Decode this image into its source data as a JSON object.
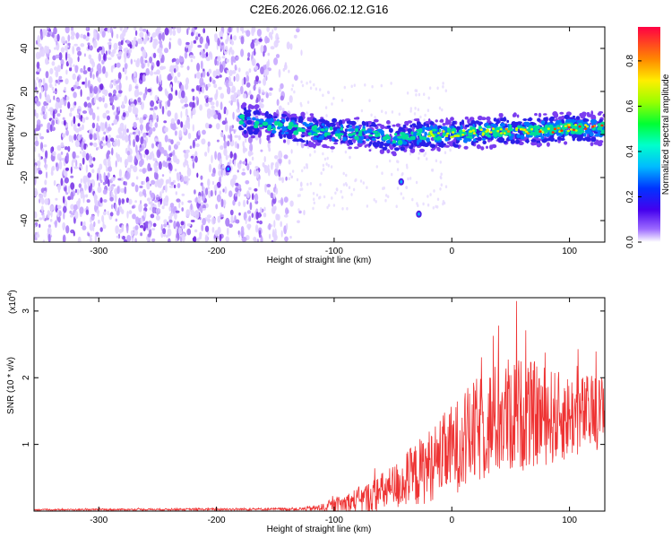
{
  "title": "C2E6.2026.066.02.12.G16",
  "chart_data": [
    {
      "type": "heatmap",
      "xlabel": "Height of straight line (km)",
      "ylabel": "Frequency (Hz)",
      "xlim": [
        -355,
        130
      ],
      "ylim": [
        -50,
        50
      ],
      "x_ticks": [
        -300,
        -200,
        -100,
        0,
        100
      ],
      "x_tick_labels": [
        "-300",
        "-200",
        "-100",
        "0",
        "100"
      ],
      "y_ticks": [
        -40,
        -20,
        0,
        20,
        40
      ],
      "y_tick_labels": [
        "-40",
        "-20",
        "0",
        "20",
        "40"
      ],
      "noise_region_x": [
        -355,
        -125
      ],
      "signal_line": {
        "x": [
          -180,
          -150,
          -125,
          -100,
          -75,
          -50,
          -25,
          0,
          25,
          50,
          75,
          100,
          130
        ],
        "frequency": [
          7,
          4,
          2,
          1,
          0,
          -2,
          0,
          0,
          1,
          2,
          2,
          3,
          3
        ]
      },
      "isolated_points": [
        {
          "x": -190,
          "frequency": -16
        },
        {
          "x": -43,
          "frequency": -22
        },
        {
          "x": -28,
          "frequency": -37
        }
      ],
      "colorbar": {
        "label": "Normalized spectral amplitude",
        "range": [
          0.0,
          0.95
        ],
        "ticks": [
          0.0,
          0.2,
          0.4,
          0.6,
          0.8
        ],
        "tick_labels": [
          "0.0",
          "0.2",
          "0.4",
          "0.6",
          "0.8"
        ]
      }
    },
    {
      "type": "line",
      "xlabel": "Height of straight line (km)",
      "ylabel": "SNR (10 * v/v)",
      "scale_label": "(x10",
      "scale_exponent": "4",
      "scale_close": ")",
      "color": "#ee3333",
      "xlim": [
        -355,
        130
      ],
      "ylim": [
        0,
        3.2
      ],
      "x_ticks": [
        -300,
        -200,
        -100,
        0,
        100
      ],
      "x_tick_labels": [
        "-300",
        "-200",
        "-100",
        "0",
        "100"
      ],
      "y_ticks": [
        1,
        2,
        3
      ],
      "y_tick_labels": [
        "1",
        "2",
        "3"
      ],
      "envelope": {
        "x": [
          -355,
          -130,
          -110,
          -90,
          -70,
          -50,
          -30,
          -10,
          10,
          30,
          50,
          70,
          90,
          110,
          130
        ],
        "mean": [
          0.02,
          0.03,
          0.05,
          0.12,
          0.2,
          0.35,
          0.55,
          0.8,
          1.05,
          1.3,
          1.45,
          1.45,
          1.4,
          1.45,
          1.5
        ],
        "spread": [
          0.01,
          0.02,
          0.06,
          0.15,
          0.25,
          0.35,
          0.5,
          0.6,
          0.75,
          0.85,
          0.9,
          0.8,
          0.7,
          0.6,
          0.55
        ],
        "peak": {
          "x": 55,
          "y": 3.15
        }
      }
    }
  ]
}
